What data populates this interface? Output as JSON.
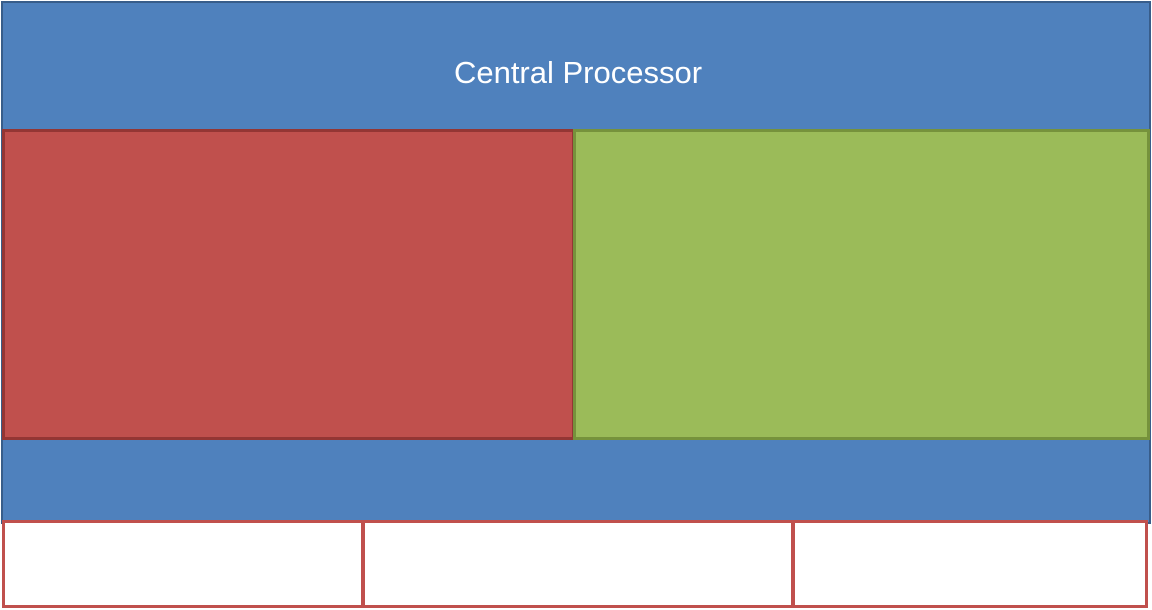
{
  "diagram": {
    "processor": {
      "title": "Central Processor",
      "fill_color": "#4f81bd",
      "border_color": "#385d8a"
    },
    "blocks": [
      {
        "fill_color": "#c0504d",
        "border_color": "#943634"
      },
      {
        "fill_color": "#9bbb59",
        "border_color": "#76923c"
      }
    ],
    "slots": [
      {
        "fill_color": "#ffffff",
        "border_color": "#c0504d"
      },
      {
        "fill_color": "#ffffff",
        "border_color": "#c0504d"
      },
      {
        "fill_color": "#ffffff",
        "border_color": "#c0504d"
      }
    ]
  }
}
